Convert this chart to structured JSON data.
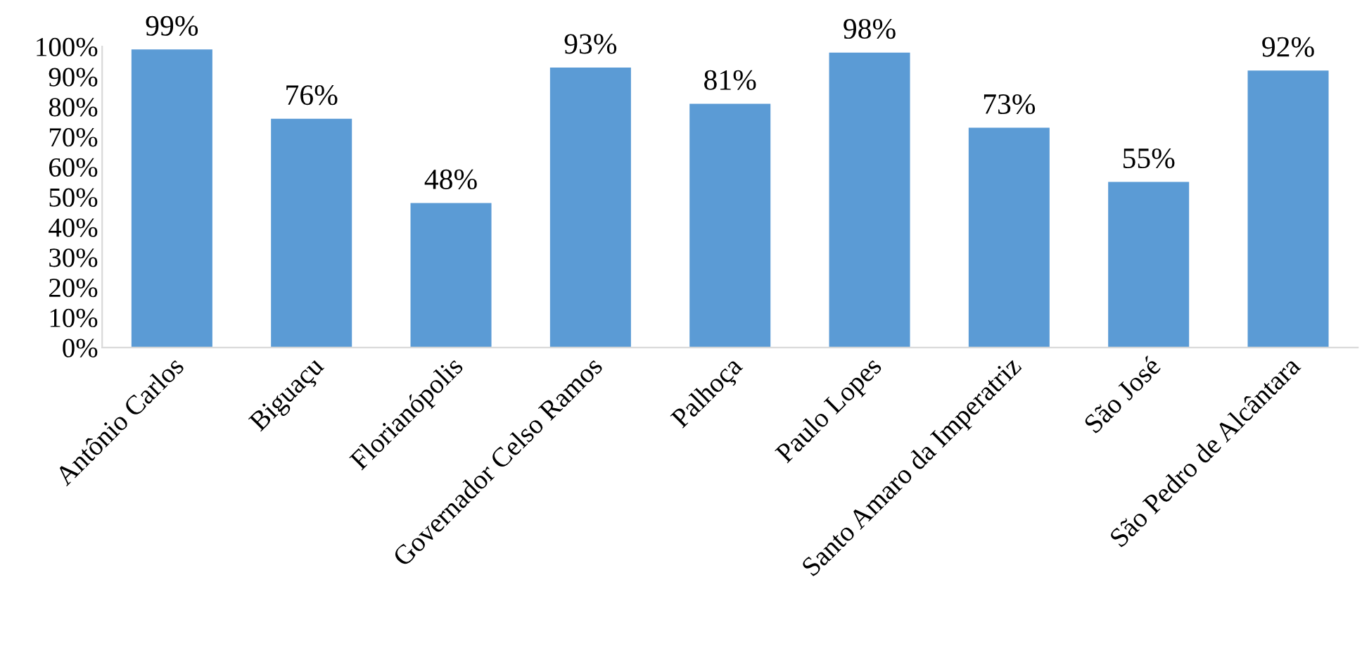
{
  "chart_data": {
    "type": "bar",
    "categories": [
      "Antônio Carlos",
      "Biguaçu",
      "Florianópolis",
      "Governador Celso Ramos",
      "Palhoça",
      "Paulo Lopes",
      "Santo Amaro da Imperatriz",
      "São José",
      "São Pedro de Alcântara"
    ],
    "values": [
      99,
      76,
      48,
      93,
      81,
      98,
      73,
      55,
      92
    ],
    "value_labels": [
      "99%",
      "76%",
      "48%",
      "93%",
      "81%",
      "98%",
      "73%",
      "55%",
      "92%"
    ],
    "color": "#5b9bd5",
    "ylim": [
      0,
      100
    ],
    "yticks": [
      {
        "value": 0,
        "label": "0%"
      },
      {
        "value": 10,
        "label": "10%"
      },
      {
        "value": 20,
        "label": "20%"
      },
      {
        "value": 30,
        "label": "30%"
      },
      {
        "value": 40,
        "label": "40%"
      },
      {
        "value": 50,
        "label": "50%"
      },
      {
        "value": 60,
        "label": "60%"
      },
      {
        "value": 70,
        "label": "70%"
      },
      {
        "value": 80,
        "label": "80%"
      },
      {
        "value": 90,
        "label": "90%"
      },
      {
        "value": 100,
        "label": "100%"
      }
    ],
    "grid": false,
    "legend": false
  }
}
